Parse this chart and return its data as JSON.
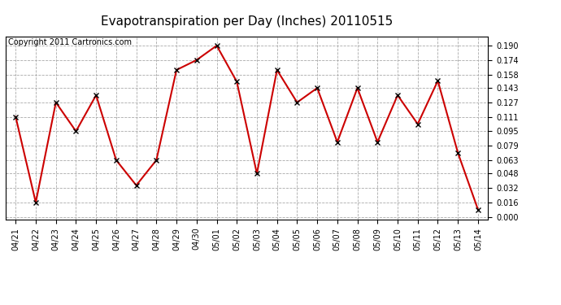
{
  "title": "Evapotranspiration per Day (Inches) 20110515",
  "copyright": "Copyright 2011 Cartronics.com",
  "x_labels": [
    "04/21",
    "04/22",
    "04/23",
    "04/24",
    "04/25",
    "04/26",
    "04/27",
    "04/28",
    "04/29",
    "04/30",
    "05/01",
    "05/02",
    "05/03",
    "05/04",
    "05/05",
    "05/06",
    "05/07",
    "05/08",
    "05/09",
    "05/10",
    "05/11",
    "05/12",
    "05/13",
    "05/14"
  ],
  "y_values": [
    0.111,
    0.016,
    0.127,
    0.095,
    0.135,
    0.063,
    0.035,
    0.063,
    0.163,
    0.174,
    0.19,
    0.15,
    0.048,
    0.163,
    0.127,
    0.143,
    0.083,
    0.143,
    0.083,
    0.135,
    0.103,
    0.151,
    0.071,
    0.008
  ],
  "line_color": "#cc0000",
  "marker": "x",
  "marker_color": "#000000",
  "bg_color": "#ffffff",
  "plot_bg_color": "#ffffff",
  "grid_color": "#aaaaaa",
  "y_ticks": [
    0.0,
    0.016,
    0.032,
    0.048,
    0.063,
    0.079,
    0.095,
    0.111,
    0.127,
    0.143,
    0.158,
    0.174,
    0.19
  ],
  "title_fontsize": 11,
  "copyright_fontsize": 7,
  "tick_fontsize": 7,
  "figsize": [
    6.9,
    3.75
  ],
  "dpi": 100
}
